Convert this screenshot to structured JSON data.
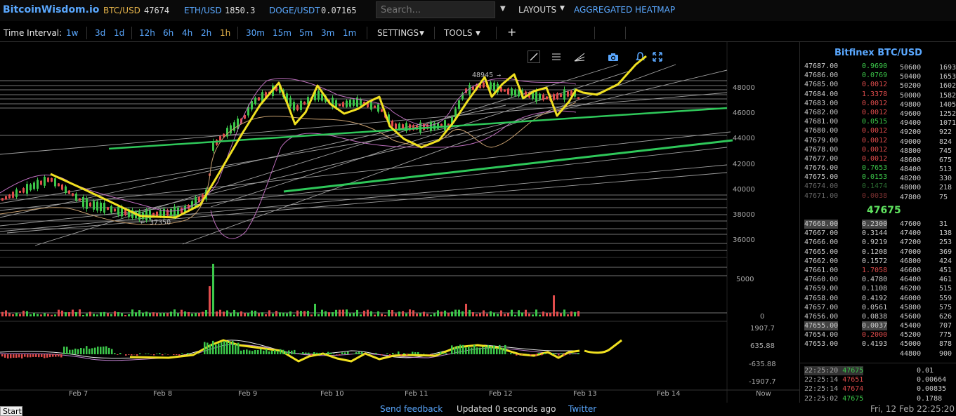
{
  "topbar": {
    "brand": "BitcoinWisdom.io",
    "pairs": [
      {
        "label": "BTC/USD",
        "value": "47674"
      },
      {
        "label": "ETH/USD",
        "value": "1850.3"
      },
      {
        "label": "DOGE/USDT",
        "value": "0.07165"
      }
    ],
    "search_placeholder": "Search...",
    "layouts_label": "LAYOUTS",
    "heatmap_label": "AGGREGATED HEATMAP"
  },
  "toolbar": {
    "time_interval_label": "Time Interval:",
    "intervals": [
      "1w",
      "3d",
      "1d",
      "12h",
      "6h",
      "4h",
      "2h",
      "1h",
      "30m",
      "15m",
      "5m",
      "3m",
      "1m"
    ],
    "active_interval": "1h",
    "settings_label": "SETTINGS",
    "tools_label": "TOOLS"
  },
  "chart": {
    "price_axis": [
      "48000",
      "46000",
      "44000",
      "42000",
      "40000",
      "38000",
      "36000"
    ],
    "volume_axis": [
      "5000",
      "0"
    ],
    "macd_axis": [
      "1907.7",
      "635.88",
      "-635.88",
      "-1907.7"
    ],
    "x_axis": [
      "Feb 7",
      "Feb 8",
      "Feb 9",
      "Feb 10",
      "Feb 11",
      "Feb 12",
      "Feb 13",
      "Feb 14",
      "Now"
    ],
    "high_label": "48945",
    "low_label": "37350",
    "colors": {
      "up": "#3cc84a",
      "down": "#e04c4c",
      "annotation": "#f0e020",
      "trend": "#2fc85a"
    }
  },
  "orderbook": {
    "title": "Bitfinex BTC/USD",
    "asks": [
      {
        "price": "47687.00",
        "amount": "0.9690"
      },
      {
        "price": "47686.00",
        "amount": "0.0769"
      },
      {
        "price": "47685.00",
        "amount": "0.0012"
      },
      {
        "price": "47684.00",
        "amount": "1.3378"
      },
      {
        "price": "47683.00",
        "amount": "0.0012"
      },
      {
        "price": "47682.00",
        "amount": "0.0012"
      },
      {
        "price": "47681.00",
        "amount": "0.0515"
      },
      {
        "price": "47680.00",
        "amount": "0.0012"
      },
      {
        "price": "47679.00",
        "amount": "0.0012"
      },
      {
        "price": "47678.00",
        "amount": "0.0012"
      },
      {
        "price": "47677.00",
        "amount": "0.0012"
      },
      {
        "price": "47676.00",
        "amount": "0.7653"
      },
      {
        "price": "47675.00",
        "amount": "0.0153"
      },
      {
        "price": "47674.00",
        "amount": "0.1474"
      },
      {
        "price": "47671.00",
        "amount": "0.0038"
      }
    ],
    "ask_depth": [
      {
        "price": "50600",
        "total": "1693"
      },
      {
        "price": "50400",
        "total": "1653"
      },
      {
        "price": "50200",
        "total": "1602"
      },
      {
        "price": "50000",
        "total": "1582"
      },
      {
        "price": "49800",
        "total": "1405"
      },
      {
        "price": "49600",
        "total": "1252"
      },
      {
        "price": "49400",
        "total": "1071"
      },
      {
        "price": "49200",
        "total": "922"
      },
      {
        "price": "49000",
        "total": "824"
      },
      {
        "price": "48800",
        "total": "745"
      },
      {
        "price": "48600",
        "total": "675"
      },
      {
        "price": "48400",
        "total": "513"
      },
      {
        "price": "48200",
        "total": "330"
      },
      {
        "price": "48000",
        "total": "218"
      },
      {
        "price": "47800",
        "total": "75"
      }
    ],
    "last_price": "47675",
    "bids": [
      {
        "price": "47668.00",
        "amount": "0.2300"
      },
      {
        "price": "47667.00",
        "amount": "0.3144"
      },
      {
        "price": "47666.00",
        "amount": "0.9219"
      },
      {
        "price": "47665.00",
        "amount": "0.1208"
      },
      {
        "price": "47662.00",
        "amount": "0.1572"
      },
      {
        "price": "47661.00",
        "amount": "1.7058"
      },
      {
        "price": "47660.00",
        "amount": "0.4780"
      },
      {
        "price": "47659.00",
        "amount": "0.1108"
      },
      {
        "price": "47658.00",
        "amount": "0.4192"
      },
      {
        "price": "47657.00",
        "amount": "0.0561"
      },
      {
        "price": "47656.00",
        "amount": "0.0838"
      },
      {
        "price": "47655.00",
        "amount": "0.0037"
      },
      {
        "price": "47654.00",
        "amount": "0.2000"
      },
      {
        "price": "47653.00",
        "amount": "0.4193"
      }
    ],
    "bid_depth": [
      {
        "price": "47600",
        "total": "31"
      },
      {
        "price": "47400",
        "total": "138"
      },
      {
        "price": "47200",
        "total": "253"
      },
      {
        "price": "47000",
        "total": "369"
      },
      {
        "price": "46800",
        "total": "424"
      },
      {
        "price": "46600",
        "total": "451"
      },
      {
        "price": "46400",
        "total": "461"
      },
      {
        "price": "46200",
        "total": "515"
      },
      {
        "price": "46000",
        "total": "559"
      },
      {
        "price": "45800",
        "total": "575"
      },
      {
        "price": "45600",
        "total": "626"
      },
      {
        "price": "45400",
        "total": "707"
      },
      {
        "price": "45200",
        "total": "775"
      },
      {
        "price": "45000",
        "total": "878"
      },
      {
        "price": "44800",
        "total": "900"
      }
    ],
    "trades": [
      {
        "time": "22:25:20",
        "price": "47675",
        "amount": "0.01",
        "side": "buy"
      },
      {
        "time": "22:25:14",
        "price": "47651",
        "amount": "0.00664",
        "side": "sell"
      },
      {
        "time": "22:25:14",
        "price": "47674",
        "amount": "0.00835",
        "side": "sell"
      },
      {
        "time": "22:25:02",
        "price": "47675",
        "amount": "0.1788",
        "side": "buy"
      }
    ]
  },
  "bottombar": {
    "start_label": "Start",
    "feedback_label": "Send feedback",
    "updated_text": "Updated 0 seconds ago",
    "twitter_label": "Twitter",
    "datetime": "Fri, 12 Feb 22:25:20"
  }
}
